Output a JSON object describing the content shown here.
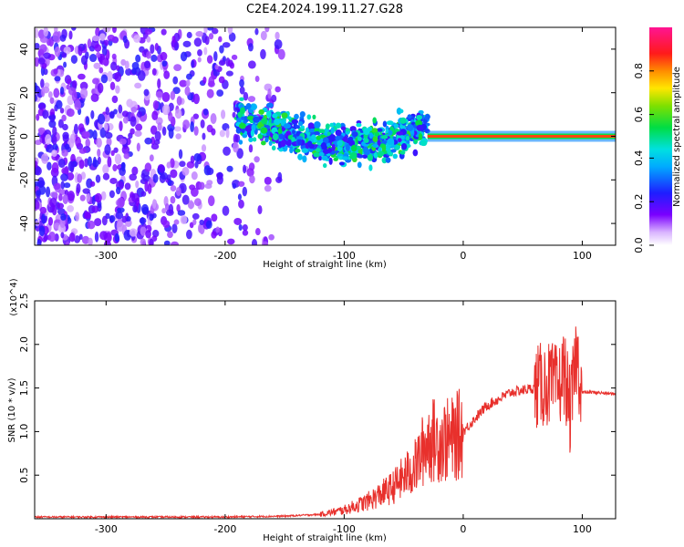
{
  "title": "C2E4.2024.199.11.27.G28",
  "chart_data": [
    {
      "type": "heatmap",
      "xlabel": "Height of straight line (km)",
      "ylabel": "Frequency (Hz)",
      "xlim": [
        -360,
        128
      ],
      "ylim": [
        -50,
        50
      ],
      "x_ticks": [
        -300,
        -200,
        -100,
        0,
        100
      ],
      "y_ticks": [
        -40,
        -20,
        0,
        20,
        40
      ],
      "colorbar": {
        "label": "Normalized spectral amplitude",
        "range": [
          0.0,
          1.0
        ],
        "ticks": [
          "0.0",
          "0.2",
          "0.4",
          "0.6",
          "0.8"
        ],
        "colormap": "rainbow (purple-blue-cyan-green-yellow-red-magenta)"
      },
      "features": [
        {
          "region": "noise",
          "x_range": [
            -360,
            -150
          ],
          "freq_range": [
            -50,
            50
          ],
          "amplitude": 0.2
        },
        {
          "region": "signal band",
          "x_range": [
            -190,
            -30
          ],
          "center_freq": [
            8,
            2,
            -4,
            -3,
            5
          ],
          "amplitude": 0.45
        },
        {
          "region": "carrier",
          "x_range": [
            -30,
            128
          ],
          "center_freq": 0,
          "amplitude": 0.85
        }
      ],
      "grid": false
    },
    {
      "type": "line",
      "xlabel": "Height of straight line (km)",
      "ylabel": "SNR (10 * v/v)",
      "y_multiplier": "(x10^4)",
      "xlim": [
        -360,
        128
      ],
      "ylim": [
        0,
        2.5
      ],
      "x_ticks": [
        -300,
        -200,
        -100,
        0,
        100
      ],
      "y_ticks": [
        "0.5",
        "1.0",
        "1.5",
        "2.0",
        "2.5"
      ],
      "series": [
        {
          "color": "#e8302c",
          "x": [
            -360,
            -300,
            -200,
            -150,
            -120,
            -100,
            -80,
            -60,
            -40,
            -30,
            -20,
            -10,
            0,
            20,
            40,
            60,
            70,
            80,
            85,
            90,
            95,
            100,
            110,
            128
          ],
          "y": [
            0.02,
            0.02,
            0.02,
            0.03,
            0.05,
            0.1,
            0.2,
            0.35,
            0.6,
            0.9,
            0.9,
            0.9,
            1.0,
            1.3,
            1.45,
            1.5,
            1.55,
            1.5,
            1.7,
            1.2,
            1.9,
            1.45,
            1.45,
            1.43
          ]
        }
      ],
      "grid": false
    }
  ]
}
